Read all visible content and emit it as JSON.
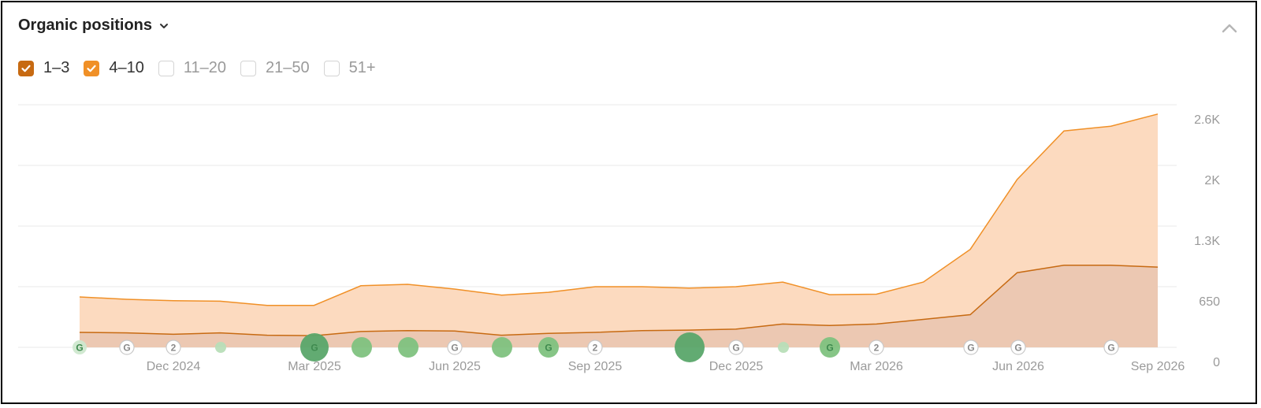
{
  "header": {
    "title": "Organic positions"
  },
  "filters": [
    {
      "label": "1–3",
      "checked": true,
      "color": "#c76a12"
    },
    {
      "label": "4–10",
      "checked": true,
      "color": "#f09027"
    },
    {
      "label": "11–20",
      "checked": false,
      "color": "#cfcfcf"
    },
    {
      "label": "21–50",
      "checked": false,
      "color": "#cfcfcf"
    },
    {
      "label": "51+",
      "checked": false,
      "color": "#cfcfcf"
    }
  ],
  "colors": {
    "series_1_3_line": "#c76a12",
    "series_1_3_fill": "#ecc8b2",
    "series_4_10_line": "#f09027",
    "series_4_10_fill": "#fcd8bc",
    "grid": "#e9e9e9",
    "marker_green": "#5aa76a"
  },
  "chart_data": {
    "type": "area",
    "stacked": true,
    "x_ticks": [
      "Dec 2024",
      "Mar 2025",
      "Jun 2025",
      "Sep 2025",
      "Dec 2025",
      "Mar 2026",
      "Jun 2026",
      "Sep 2026"
    ],
    "y_ticks": [
      "0",
      "650",
      "1.3K",
      "2K",
      "2.6K"
    ],
    "ylim": [
      0,
      2600
    ],
    "grid": true,
    "series": [
      {
        "name": "1–3",
        "values": [
          160,
          155,
          140,
          155,
          130,
          125,
          170,
          180,
          175,
          130,
          150,
          160,
          180,
          185,
          195,
          250,
          235,
          250,
          300,
          350,
          800,
          880,
          880,
          860
        ]
      },
      {
        "name": "4–10",
        "values": [
          380,
          360,
          360,
          340,
          320,
          325,
          490,
          495,
          450,
          430,
          440,
          490,
          470,
          450,
          455,
          450,
          330,
          320,
          400,
          700,
          1000,
          1440,
          1490,
          1640
        ]
      }
    ],
    "annotations": [
      {
        "kind": "update",
        "label": "G",
        "size": "small",
        "color": "green-light"
      },
      {
        "kind": "google",
        "label": "G",
        "size": "small"
      },
      {
        "kind": "count",
        "label": "2",
        "size": "small"
      },
      {
        "kind": "update",
        "label": "",
        "size": "tiny",
        "color": "green-pale"
      },
      {
        "kind": "update",
        "label": "G",
        "size": "large",
        "color": "green-dark"
      },
      {
        "kind": "update",
        "label": "",
        "size": "medium",
        "color": "green"
      },
      {
        "kind": "update",
        "label": "",
        "size": "medium",
        "color": "green"
      },
      {
        "kind": "google",
        "label": "G",
        "size": "small"
      },
      {
        "kind": "update",
        "label": "",
        "size": "medium",
        "color": "green"
      },
      {
        "kind": "update",
        "label": "G",
        "size": "medium",
        "color": "green"
      },
      {
        "kind": "count",
        "label": "2",
        "size": "small"
      },
      {
        "kind": "update",
        "label": "",
        "size": "xlarge",
        "color": "green-dark"
      },
      {
        "kind": "google",
        "label": "G",
        "size": "small"
      },
      {
        "kind": "update",
        "label": "",
        "size": "tiny",
        "color": "green-pale"
      },
      {
        "kind": "update",
        "label": "G",
        "size": "medium",
        "color": "green"
      },
      {
        "kind": "count",
        "label": "2",
        "size": "small"
      },
      {
        "kind": "google",
        "label": "G",
        "size": "small"
      },
      {
        "kind": "google",
        "label": "G",
        "size": "small"
      },
      {
        "kind": "google",
        "label": "G",
        "size": "small"
      }
    ]
  }
}
